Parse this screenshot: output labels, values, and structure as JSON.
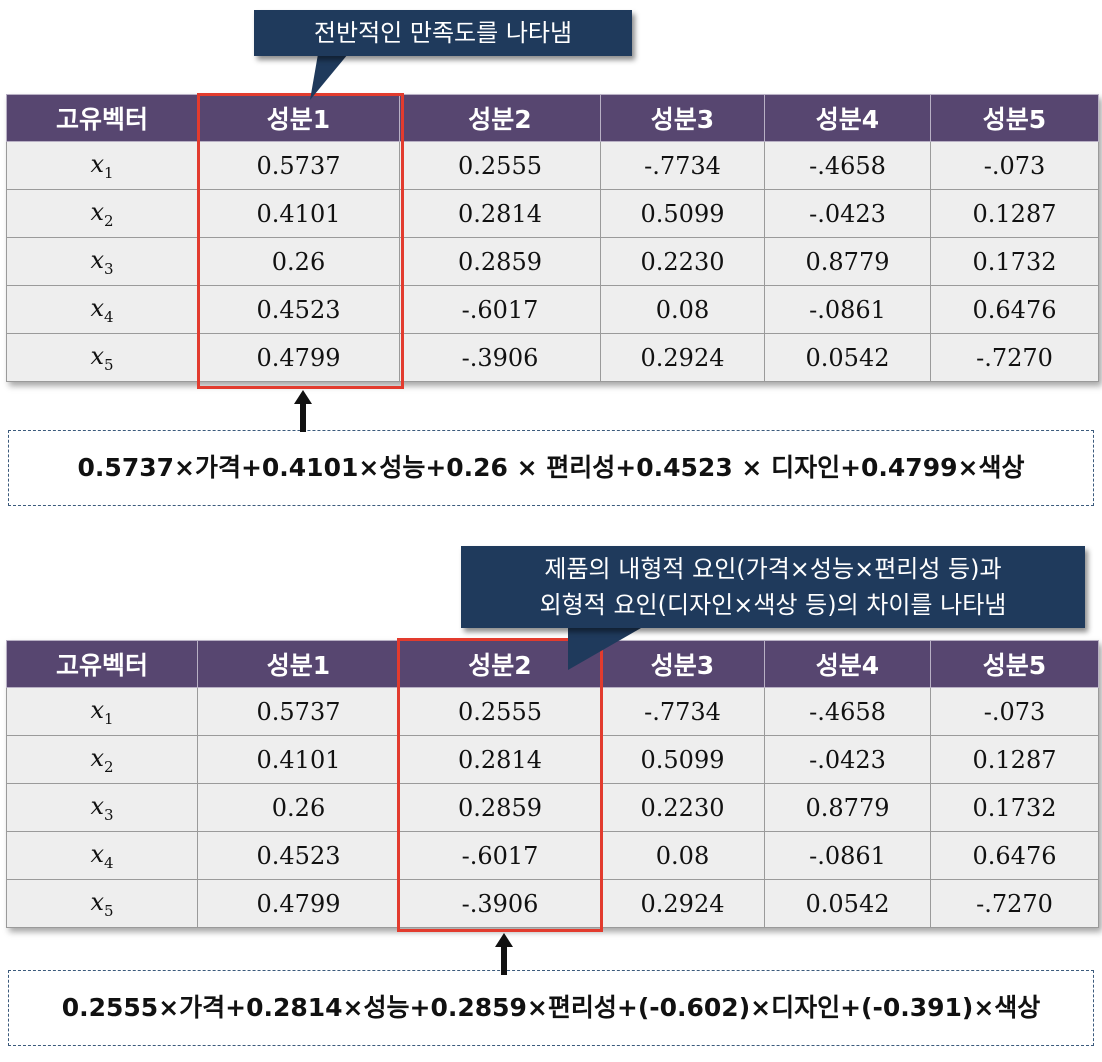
{
  "columns": [
    "고유벡터",
    "성분1",
    "성분2",
    "성분3",
    "성분4",
    "성분5"
  ],
  "rows": [
    {
      "var": "x",
      "sub": "1",
      "values": [
        "0.5737",
        "0.2555",
        "-.7734",
        "-.4658",
        "-.073"
      ]
    },
    {
      "var": "x",
      "sub": "2",
      "values": [
        "0.4101",
        "0.2814",
        "0.5099",
        "-.0423",
        "0.1287"
      ]
    },
    {
      "var": "x",
      "sub": "3",
      "values": [
        "0.26",
        "0.2859",
        "0.2230",
        "0.8779",
        "0.1732"
      ]
    },
    {
      "var": "x",
      "sub": "4",
      "values": [
        "0.4523",
        "-.6017",
        "0.08",
        "-.0861",
        "0.6476"
      ]
    },
    {
      "var": "x",
      "sub": "5",
      "values": [
        "0.4799",
        "-.3906",
        "0.2924",
        "0.0542",
        "-.7270"
      ]
    }
  ],
  "callout1": "전반적인 만족도를 나타냄",
  "callout2": {
    "line1": "제품의 내형적 요인(가격×성능×편리성 등)과",
    "line2": "외형적 요인(디자인×색상 등)의 차이를 나타냄"
  },
  "formula1": "0.5737×가격+0.4101×성능+0.26 × 편리성+0.4523 × 디자인+0.4799×색상",
  "formula2": "0.2555×가격+0.2814×성능+0.2859×편리성+(-0.602)×디자인+(-0.391)×색상",
  "colors": {
    "header_bg": "#574670",
    "cell_bg": "#eeeeee",
    "callout_bg": "#1f3a5c",
    "highlight": "#e23b2e"
  }
}
